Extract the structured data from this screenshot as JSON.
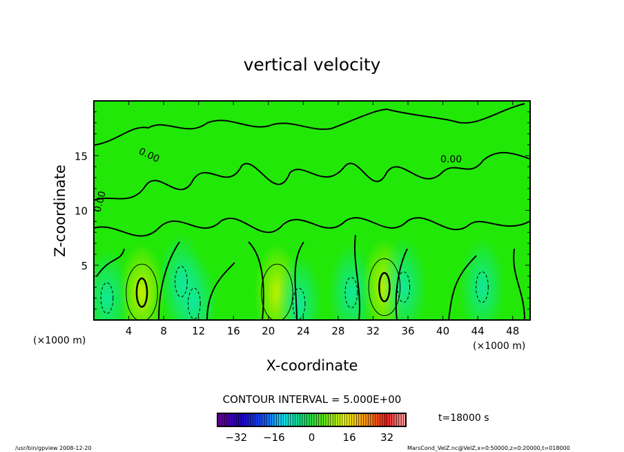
{
  "chart_data": {
    "type": "heatmap",
    "title": "vertical velocity",
    "xlabel": "X-coordinate",
    "ylabel": "Z-coordinate",
    "x_unit": "(×1000 m)",
    "y_unit": "(×1000 m)",
    "xlim": [
      0,
      50
    ],
    "ylim": [
      0,
      20
    ],
    "x_ticks": [
      4,
      8,
      12,
      16,
      20,
      24,
      28,
      32,
      36,
      40,
      44,
      48
    ],
    "y_ticks": [
      5,
      10,
      15
    ],
    "contour_interval_label": "CONTOUR INTERVAL = 5.000E+00",
    "contour_labels": [
      "0.00",
      "0.00",
      "0.00"
    ],
    "colorbar": {
      "range": [
        -40,
        40
      ],
      "ticks": [
        -32,
        -16,
        0,
        16,
        32
      ]
    },
    "updrafts": [
      {
        "x": 5.5,
        "z": 2.5,
        "peak": 12
      },
      {
        "x": 21,
        "z": 2.5,
        "peak": 8
      },
      {
        "x": 33.3,
        "z": 3,
        "peak": 12
      }
    ],
    "downdrafts": [
      {
        "x": 1.5,
        "z": 2,
        "peak": -7
      },
      {
        "x": 10,
        "z": 3.5,
        "peak": -7
      },
      {
        "x": 11.5,
        "z": 1.5,
        "peak": -6
      },
      {
        "x": 23.5,
        "z": 1.5,
        "peak": -6
      },
      {
        "x": 29.5,
        "z": 2.5,
        "peak": -6
      },
      {
        "x": 35.5,
        "z": 3,
        "peak": -7
      },
      {
        "x": 44.5,
        "z": 3,
        "peak": -8
      }
    ]
  },
  "annotations": {
    "time": "t=18000 s",
    "program": "/usr/bin/gpview  2008-12-20",
    "source": "MarsCond_VelZ.nc@VelZ,x=0:50000,z=0:20000,t=018000"
  }
}
